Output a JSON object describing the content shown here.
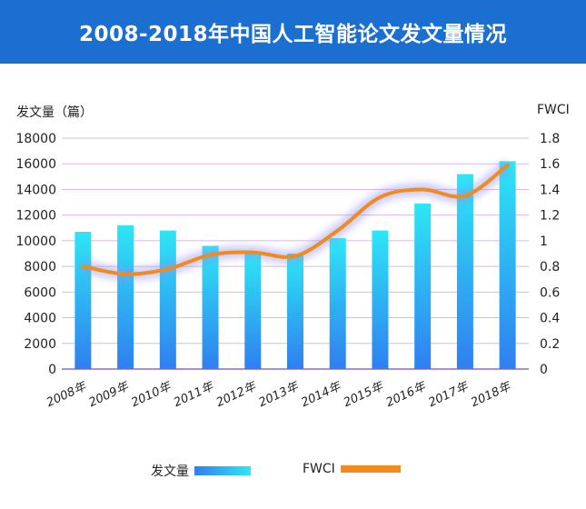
{
  "header": {
    "title": "2008-2018年中国人工智能论文发文量情况"
  },
  "chart_data": {
    "type": "bar+line",
    "title": "2008-2018年中国人工智能论文发文量情况",
    "categories": [
      "2008年",
      "2009年",
      "2010年",
      "2011年",
      "2012年",
      "2013年",
      "2014年",
      "2015年",
      "2016年",
      "2017年",
      "2018年"
    ],
    "series": [
      {
        "name": "发文量",
        "type": "bar",
        "axis": "left",
        "values": [
          10700,
          11200,
          10800,
          9600,
          9000,
          9000,
          10200,
          10800,
          12900,
          15200,
          16200
        ]
      },
      {
        "name": "FWCI",
        "type": "line",
        "axis": "right",
        "values": [
          0.8,
          0.74,
          0.78,
          0.89,
          0.91,
          0.88,
          1.08,
          1.34,
          1.4,
          1.35,
          1.59
        ]
      }
    ],
    "ylabel_left": "发文量（篇）",
    "ylabel_right": "FWCI",
    "ylim_left": [
      0,
      18000
    ],
    "yticks_left": [
      "0",
      "2000",
      "4000",
      "6000",
      "8000",
      "10000",
      "12000",
      "14000",
      "16000",
      "18000"
    ],
    "ylim_right": [
      0,
      1.8
    ],
    "yticks_right": [
      "0",
      "0.2",
      "0.4",
      "0.6",
      "0.8",
      "1",
      "1.2",
      "1.4",
      "1.6",
      "1.8"
    ],
    "grid": true,
    "legend_position": "bottom",
    "colors": {
      "bar_top": "#2ee6f5",
      "bar_bottom": "#2f7ff0",
      "line": "#f28a1c",
      "grid": "#d8b8e8",
      "axis": "#8a6ad0",
      "header": "#1a6fd1"
    }
  }
}
